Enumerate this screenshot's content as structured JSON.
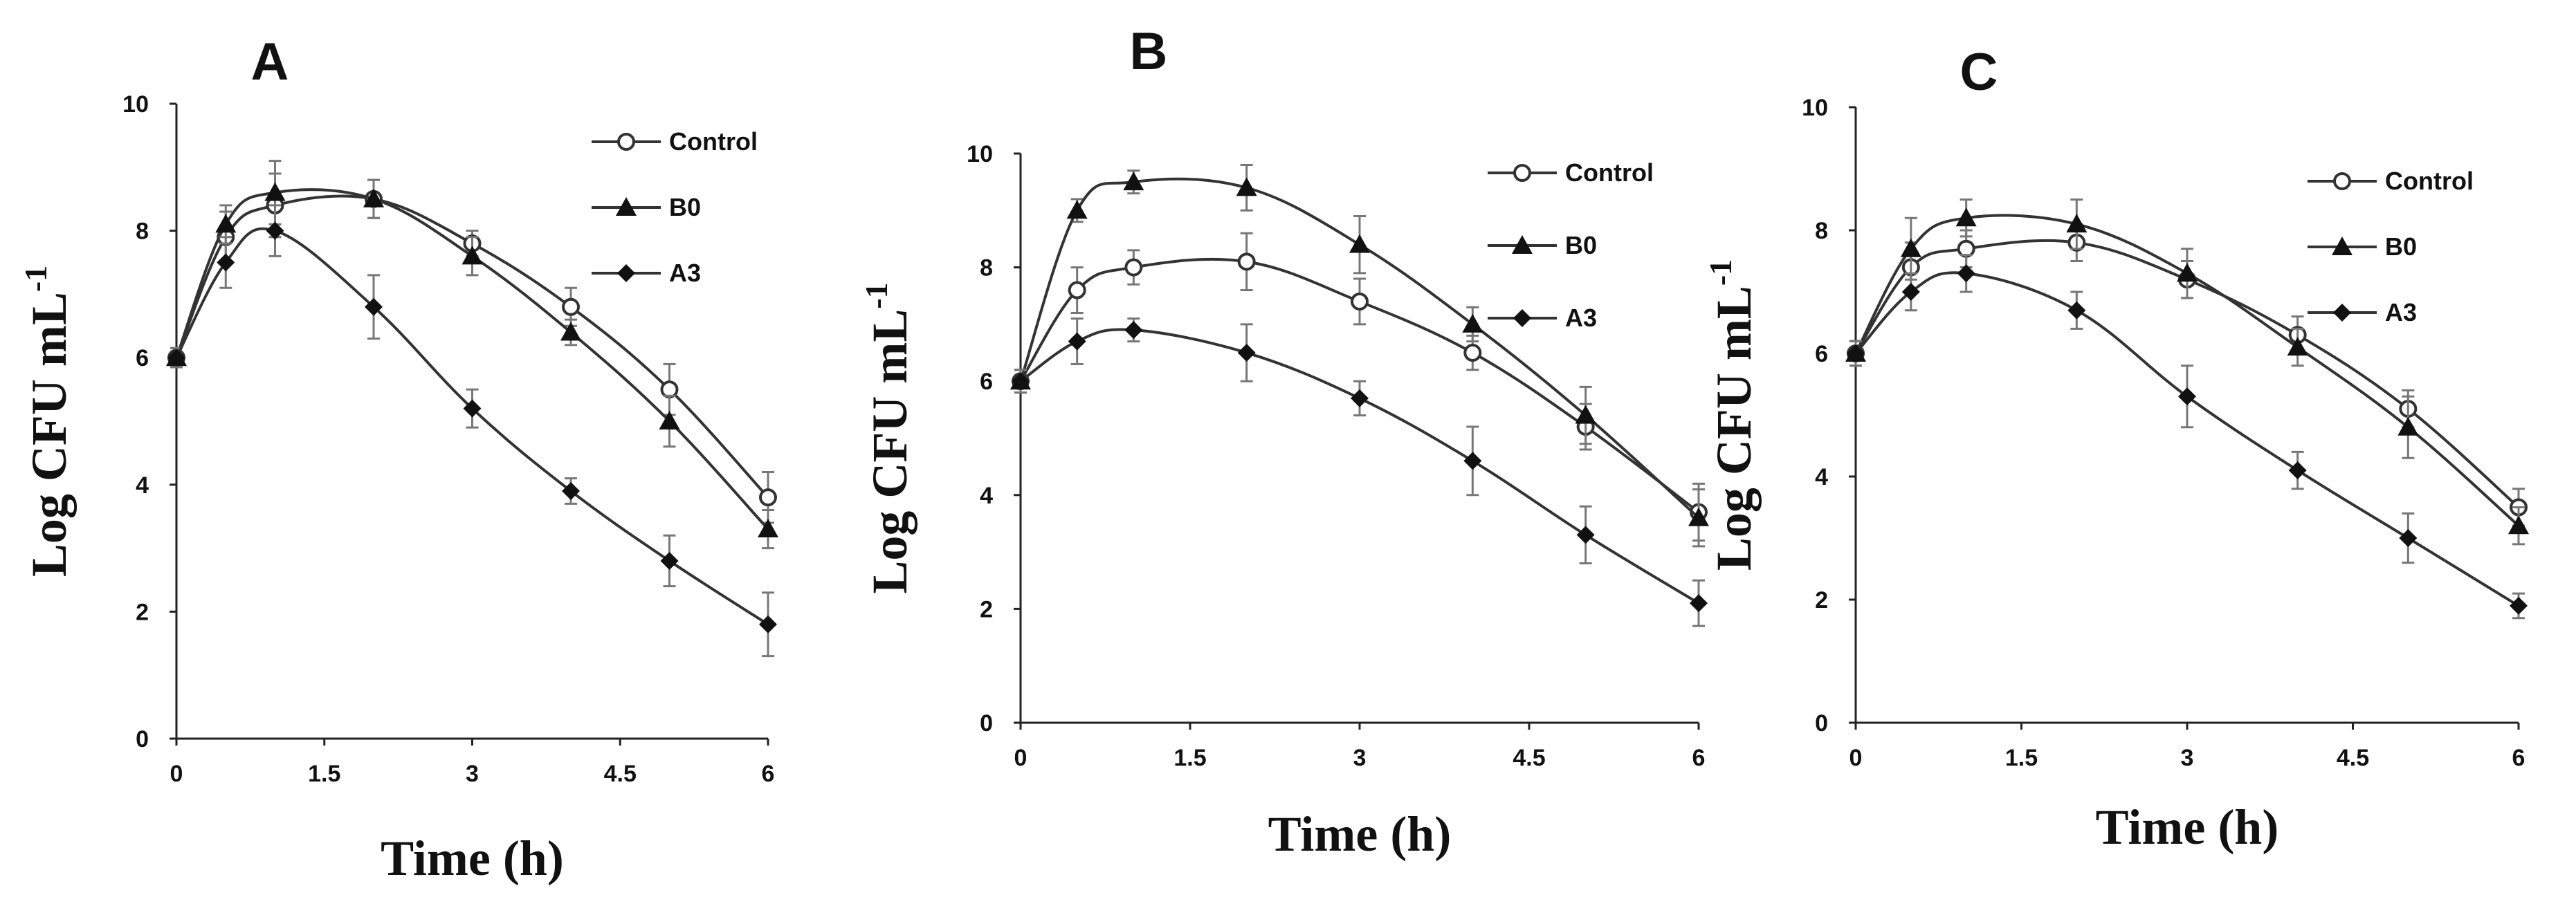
{
  "chart_data": [
    {
      "type": "line",
      "title": "A",
      "xlabel": "Time (h)",
      "ylabel": "Log CFU mL",
      "ylabel_sup": "-1",
      "xlim": [
        0,
        6
      ],
      "ylim": [
        0,
        10
      ],
      "xticks": [
        0,
        1.5,
        3,
        4.5,
        6
      ],
      "xtick_labels": [
        "0",
        "1.5",
        "3",
        "4.5",
        "6"
      ],
      "yticks": [
        0,
        2,
        4,
        6,
        8,
        10
      ],
      "ytick_labels": [
        "0",
        "2",
        "4",
        "6",
        "8",
        "10"
      ],
      "x": [
        0,
        0.5,
        1,
        2,
        3,
        4,
        5,
        6
      ],
      "legend_position": "top-right",
      "series": [
        {
          "name": "Control",
          "marker": "circle-open",
          "values": [
            6.0,
            7.9,
            8.4,
            8.5,
            7.8,
            6.8,
            5.5,
            3.8
          ],
          "errors": [
            0.15,
            0.4,
            0.5,
            0.3,
            0.2,
            0.3,
            0.4,
            0.4
          ]
        },
        {
          "name": "B0",
          "marker": "triangle",
          "values": [
            6.0,
            8.1,
            8.6,
            8.5,
            7.6,
            6.4,
            5.0,
            3.3
          ],
          "errors": [
            0.15,
            0.3,
            0.5,
            0.3,
            0.3,
            0.2,
            0.4,
            0.3
          ]
        },
        {
          "name": "A3",
          "marker": "diamond",
          "values": [
            6.0,
            7.5,
            8.0,
            6.8,
            5.2,
            3.9,
            2.8,
            1.8
          ],
          "errors": [
            0.15,
            0.4,
            0.4,
            0.5,
            0.3,
            0.2,
            0.4,
            0.5
          ]
        }
      ]
    },
    {
      "type": "line",
      "title": "B",
      "xlabel": "Time (h)",
      "ylabel": "Log CFU mL",
      "ylabel_sup": "-1",
      "xlim": [
        0,
        6
      ],
      "ylim": [
        0,
        10
      ],
      "xticks": [
        0,
        1.5,
        3,
        4.5,
        6
      ],
      "xtick_labels": [
        "0",
        "1.5",
        "3",
        "4.5",
        "6"
      ],
      "yticks": [
        0,
        2,
        4,
        6,
        8,
        10
      ],
      "ytick_labels": [
        "0",
        "2",
        "4",
        "6",
        "8",
        "10"
      ],
      "x": [
        0,
        0.5,
        1,
        2,
        3,
        4,
        5,
        6
      ],
      "legend_position": "top-right",
      "series": [
        {
          "name": "Control",
          "marker": "circle-open",
          "values": [
            6.0,
            7.6,
            8.0,
            8.1,
            7.4,
            6.5,
            5.2,
            3.7
          ],
          "errors": [
            0.2,
            0.4,
            0.3,
            0.5,
            0.4,
            0.3,
            0.4,
            0.5
          ]
        },
        {
          "name": "B0",
          "marker": "triangle",
          "values": [
            6.0,
            9.0,
            9.5,
            9.4,
            8.4,
            7.0,
            5.4,
            3.6
          ],
          "errors": [
            0.2,
            0.2,
            0.2,
            0.4,
            0.5,
            0.3,
            0.5,
            0.5
          ]
        },
        {
          "name": "A3",
          "marker": "diamond",
          "values": [
            6.0,
            6.7,
            6.9,
            6.5,
            5.7,
            4.6,
            3.3,
            2.1
          ],
          "errors": [
            0.2,
            0.4,
            0.2,
            0.5,
            0.3,
            0.6,
            0.5,
            0.4
          ]
        }
      ]
    },
    {
      "type": "line",
      "title": "C",
      "xlabel": "Time (h)",
      "ylabel": "Log CFU mL",
      "ylabel_sup": "-1",
      "xlim": [
        0,
        6
      ],
      "ylim": [
        0,
        10
      ],
      "xticks": [
        0,
        1.5,
        3,
        4.5,
        6
      ],
      "xtick_labels": [
        "0",
        "1.5",
        "3",
        "4.5",
        "6"
      ],
      "yticks": [
        0,
        2,
        4,
        6,
        8,
        10
      ],
      "ytick_labels": [
        "0",
        "2",
        "4",
        "6",
        "8",
        "10"
      ],
      "x": [
        0,
        0.5,
        1,
        2,
        3,
        4,
        5,
        6
      ],
      "legend_position": "top-right",
      "series": [
        {
          "name": "Control",
          "marker": "circle-open",
          "values": [
            6.0,
            7.4,
            7.7,
            7.8,
            7.2,
            6.3,
            5.1,
            3.5
          ],
          "errors": [
            0.2,
            0.4,
            0.3,
            0.3,
            0.3,
            0.3,
            0.3,
            0.3
          ]
        },
        {
          "name": "B0",
          "marker": "triangle",
          "values": [
            6.0,
            7.7,
            8.2,
            8.1,
            7.3,
            6.1,
            4.8,
            3.2
          ],
          "errors": [
            0.2,
            0.5,
            0.3,
            0.4,
            0.4,
            0.3,
            0.5,
            0.3
          ]
        },
        {
          "name": "A3",
          "marker": "diamond",
          "values": [
            6.0,
            7.0,
            7.3,
            6.7,
            5.3,
            4.1,
            3.0,
            1.9
          ],
          "errors": [
            0.2,
            0.3,
            0.3,
            0.3,
            0.5,
            0.3,
            0.4,
            0.2
          ]
        }
      ]
    }
  ]
}
